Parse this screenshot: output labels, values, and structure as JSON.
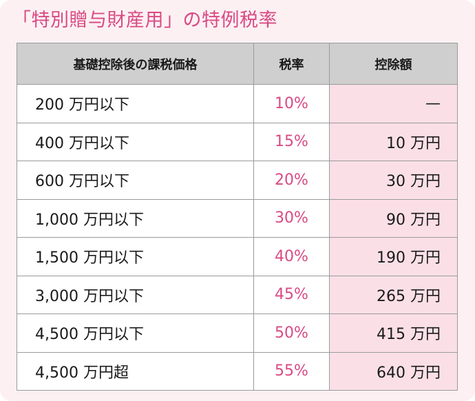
{
  "title": "「特別贈与財産用」の特例税率",
  "headers": {
    "price": "基礎控除後の課税価格",
    "rate": "税率",
    "deduction": "控除額"
  },
  "rows": [
    {
      "price": "200 万円以下",
      "rate": "10%",
      "deduction": "—"
    },
    {
      "price": "400 万円以下",
      "rate": "15%",
      "deduction": "10 万円"
    },
    {
      "price": "600 万円以下",
      "rate": "20%",
      "deduction": "30 万円"
    },
    {
      "price": "1,000 万円以下",
      "rate": "30%",
      "deduction": "90 万円"
    },
    {
      "price": "1,500 万円以下",
      "rate": "40%",
      "deduction": "190 万円"
    },
    {
      "price": "3,000 万円以下",
      "rate": "45%",
      "deduction": "265 万円"
    },
    {
      "price": "4,500 万円以下",
      "rate": "50%",
      "deduction": "415 万円"
    },
    {
      "price": "4,500 万円超",
      "rate": "55%",
      "deduction": "640 万円"
    }
  ],
  "colors": {
    "accent": "#d94a83",
    "card_background": "#fdf0f3",
    "header_background": "#cfcfcf",
    "deduction_background": "#fbdfe7"
  }
}
